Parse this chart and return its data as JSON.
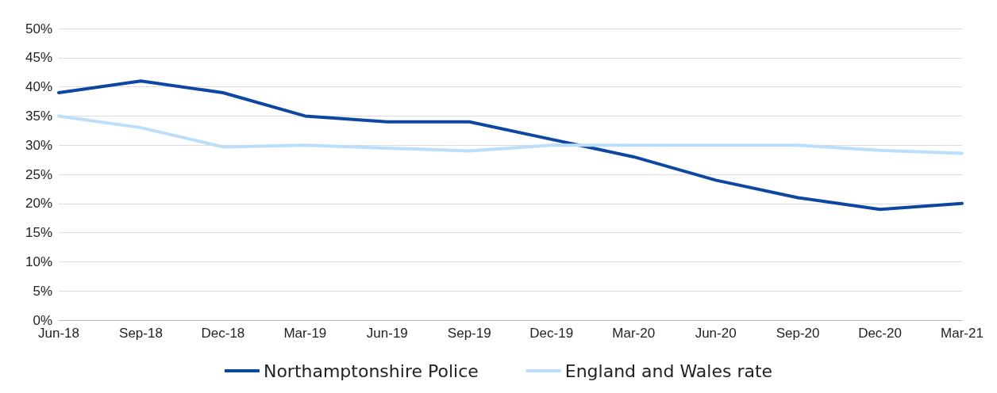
{
  "chart_data": {
    "type": "line",
    "categories": [
      "Jun-18",
      "Sep-18",
      "Dec-18",
      "Mar-19",
      "Jun-19",
      "Sep-19",
      "Dec-19",
      "Mar-20",
      "Jun-20",
      "Sep-20",
      "Dec-20",
      "Mar-21"
    ],
    "series": [
      {
        "name": "Northamptonshire Police",
        "color": "#0d47a1",
        "values": [
          39,
          41,
          39,
          35,
          34,
          34,
          31,
          28,
          24,
          21,
          19,
          20
        ]
      },
      {
        "name": "England and Wales rate",
        "color": "#bbdefb",
        "values": [
          35,
          33,
          29.7,
          30,
          29.5,
          29,
          30,
          30,
          30,
          30,
          29.1,
          28.6
        ]
      }
    ],
    "ylim": [
      0,
      50
    ],
    "yticks": [
      {
        "value": 0,
        "label": "0%"
      },
      {
        "value": 5,
        "label": "5%"
      },
      {
        "value": 10,
        "label": "10%"
      },
      {
        "value": 15,
        "label": "15%"
      },
      {
        "value": 20,
        "label": "20%"
      },
      {
        "value": 25,
        "label": "25%"
      },
      {
        "value": 30,
        "label": "30%"
      },
      {
        "value": 35,
        "label": "35%"
      },
      {
        "value": 40,
        "label": "40%"
      },
      {
        "value": 45,
        "label": "45%"
      },
      {
        "value": 50,
        "label": "50%"
      }
    ],
    "grid": "y",
    "legend": "bottom",
    "marker": "none",
    "line_style": "solid"
  }
}
